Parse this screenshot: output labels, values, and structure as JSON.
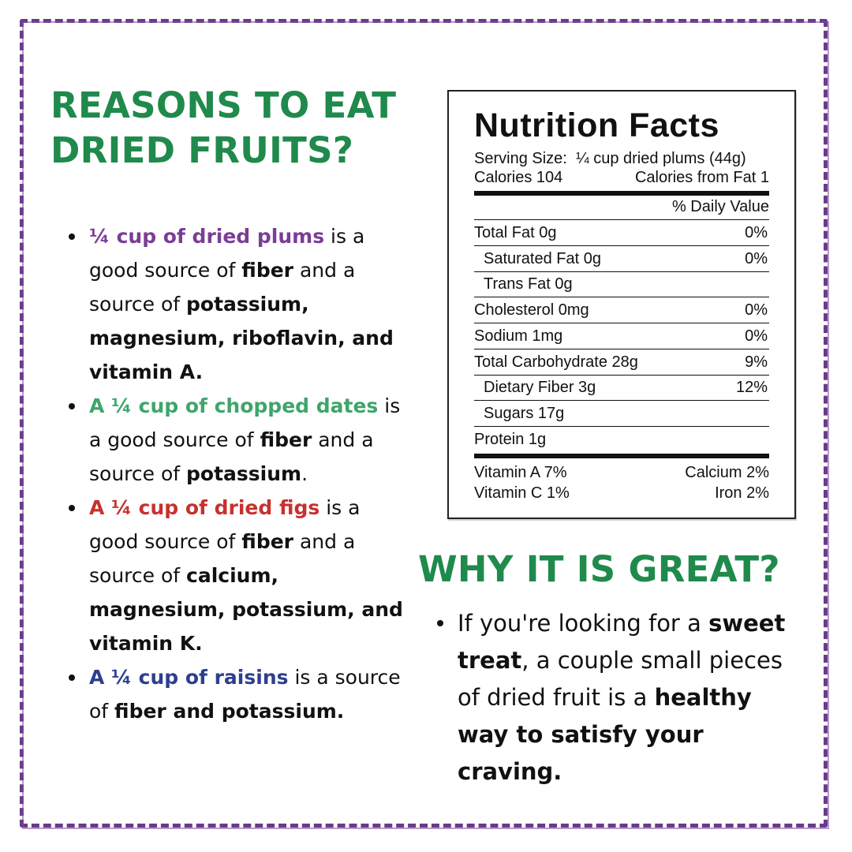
{
  "left": {
    "heading": "REASONS TO EAT DRIED FRUITS?",
    "bullets": [
      {
        "parts": [
          {
            "text": "¼ cup of dried plums",
            "style": "purple"
          },
          {
            "text": " is a good source of ",
            "style": ""
          },
          {
            "text": "fiber",
            "style": "bold"
          },
          {
            "text": " and a source of ",
            "style": ""
          },
          {
            "text": "potassium, magnesium, riboflavin, and vitamin A.",
            "style": "bold"
          }
        ]
      },
      {
        "parts": [
          {
            "text": "A ¼ cup of chopped dates",
            "style": "green"
          },
          {
            "text": " is a good source of ",
            "style": ""
          },
          {
            "text": "fiber",
            "style": "bold"
          },
          {
            "text": " and a source of ",
            "style": ""
          },
          {
            "text": "potassium",
            "style": "bold"
          },
          {
            "text": ".",
            "style": ""
          }
        ]
      },
      {
        "parts": [
          {
            "text": "A ¼ cup of dried figs",
            "style": "red"
          },
          {
            "text": " is a good source of ",
            "style": ""
          },
          {
            "text": "fiber",
            "style": "bold"
          },
          {
            "text": " and a source of ",
            "style": ""
          },
          {
            "text": "calcium, magnesium, potassium, and vitamin K.",
            "style": "bold"
          }
        ]
      },
      {
        "parts": [
          {
            "text": "A ¼ cup of raisins",
            "style": "blue"
          },
          {
            "text": " is a source of ",
            "style": ""
          },
          {
            "text": "fiber and potassium.",
            "style": "bold"
          }
        ]
      }
    ]
  },
  "nutrition": {
    "title": "Nutrition Facts",
    "serving_label": "Serving Size:",
    "serving_value": "¼ cup dried plums (44g)",
    "calories": "Calories 104",
    "calories_fat": "Calories from Fat 1",
    "dv_header": "% Daily Value",
    "rows": [
      {
        "label": "Total Fat 0g",
        "value": "0%",
        "indent": false
      },
      {
        "label": "Saturated Fat 0g",
        "value": "0%",
        "indent": true
      },
      {
        "label": "Trans Fat 0g",
        "value": "",
        "indent": true
      },
      {
        "label": "Cholesterol 0mg",
        "value": "0%",
        "indent": false
      },
      {
        "label": "Sodium 1mg",
        "value": "0%",
        "indent": false
      },
      {
        "label": "Total Carbohydrate 28g",
        "value": "9%",
        "indent": false
      },
      {
        "label": "Dietary Fiber 3g",
        "value": "12%",
        "indent": true
      },
      {
        "label": "Sugars 17g",
        "value": "",
        "indent": true
      },
      {
        "label": "Protein 1g",
        "value": "",
        "indent": false
      }
    ],
    "vitamin_a": "Vitamin A 7%",
    "calcium": "Calcium 2%",
    "vitamin_c": "Vitamin C 1%",
    "iron": "Iron 2%"
  },
  "right": {
    "heading": "WHY IT IS GREAT?",
    "bullets": [
      {
        "parts": [
          {
            "text": "If you're looking for a ",
            "style": ""
          },
          {
            "text": "sweet treat",
            "style": "bold"
          },
          {
            "text": ", a couple small pieces of dried fruit is a ",
            "style": ""
          },
          {
            "text": "healthy way to satisfy your craving.",
            "style": "bold"
          }
        ]
      }
    ]
  },
  "colors": {
    "heading_green": "#1f8a4c",
    "frame_purple": "#6b3a8c",
    "plums_purple": "#7b3d95",
    "dates_green": "#3fa56b",
    "figs_red": "#c7312f",
    "raisins_blue": "#2d3f8e"
  }
}
